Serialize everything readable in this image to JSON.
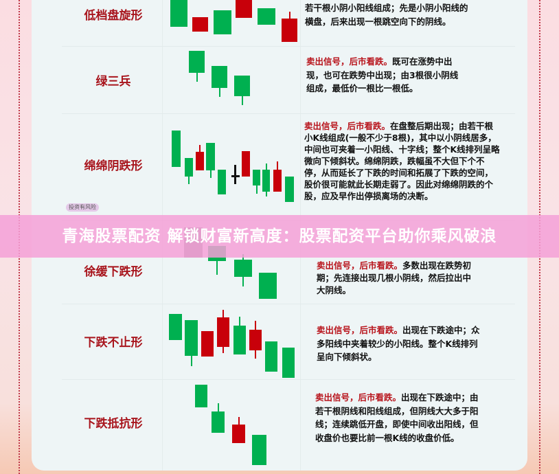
{
  "signal_label": "卖出信号，后市看跌。",
  "patterns": [
    {
      "name": "低档盘旋形",
      "desc_lines": [
        "若干根小阴小阳线组成；先是小阴小阳线的",
        "横盘，后来出现一根跳空向下的阴线。"
      ]
    },
    {
      "name": "绿三兵",
      "desc": "既可在涨势中出现，也可在跌势中出现；由3根很小阴线组成，最低价一根比一根低。"
    },
    {
      "name": "绵绵阴跌形",
      "desc": "在盘整后期出现；由若干根小K线组成(一般不少于8根)，其中以小阴线居多，中间也可夹着一小阳线、十字线；整个K线排列呈略微向下倾斜状。绵绵阴跌，跌幅虽不大但下个不停，从而延长了下跌的时间和拓展了下跌的空间，股价很可能就此长期走弱了。因此对绵绵阴跌的个股，应及早作出停损离场的决断。"
    },
    {
      "name": "徐缓下跌形",
      "desc": "多数出现在跌势初期；先连接出现几根小阴线，然后拉出中大阴线。"
    },
    {
      "name": "下跌不止形",
      "desc": "出现在下跌途中；众多阳线中夹着较少的小阳线。整个K线排列呈向下倾斜状。"
    },
    {
      "name": "下跌抵抗形",
      "desc": "出现在下跌途中；由若干根阴线和阳线组成，但阴线大大多于阳线；连续跳低开盘，即使中间收出阳线，但收盘价也要比前一根K线的收盘价低。"
    }
  ],
  "banner": "青海股票配资 解锁财富新高度：股票配资平台助你乘风破浪",
  "risk_badge": "投资有风险",
  "colors": {
    "bearish_green": "#00b050",
    "bullish_red": "#c8000a",
    "title_red": "#a8141c",
    "banner_pink": "#f5a0d7"
  }
}
